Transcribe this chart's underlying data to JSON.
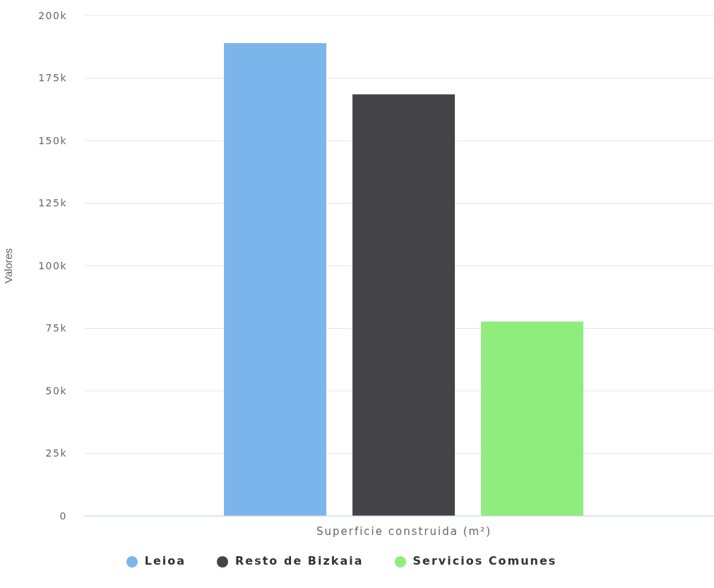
{
  "chart_data": {
    "type": "bar",
    "categories": [
      "Superficie construida (m²)"
    ],
    "series": [
      {
        "name": "Leioa",
        "color": "#7cb5ec",
        "values": [
          189000
        ]
      },
      {
        "name": "Resto de Bizkaia",
        "color": "#434348",
        "values": [
          168500
        ]
      },
      {
        "name": "Servicios Comunes",
        "color": "#90ed7d",
        "values": [
          77700
        ]
      }
    ],
    "ylabel": "Valores",
    "ylim": [
      0,
      200000
    ],
    "yticks": [
      0,
      {
        "value": 25000,
        "label": "25k"
      },
      {
        "value": 50000,
        "label": "50k"
      },
      {
        "value": 75000,
        "label": "75k"
      },
      {
        "value": 100000,
        "label": "100k"
      },
      {
        "value": 125000,
        "label": "125k"
      },
      {
        "value": 150000,
        "label": "150k"
      },
      {
        "value": 175000,
        "label": "175k"
      },
      {
        "value": 200000,
        "label": "200k"
      }
    ],
    "grid": "y",
    "legend": "bottom"
  }
}
